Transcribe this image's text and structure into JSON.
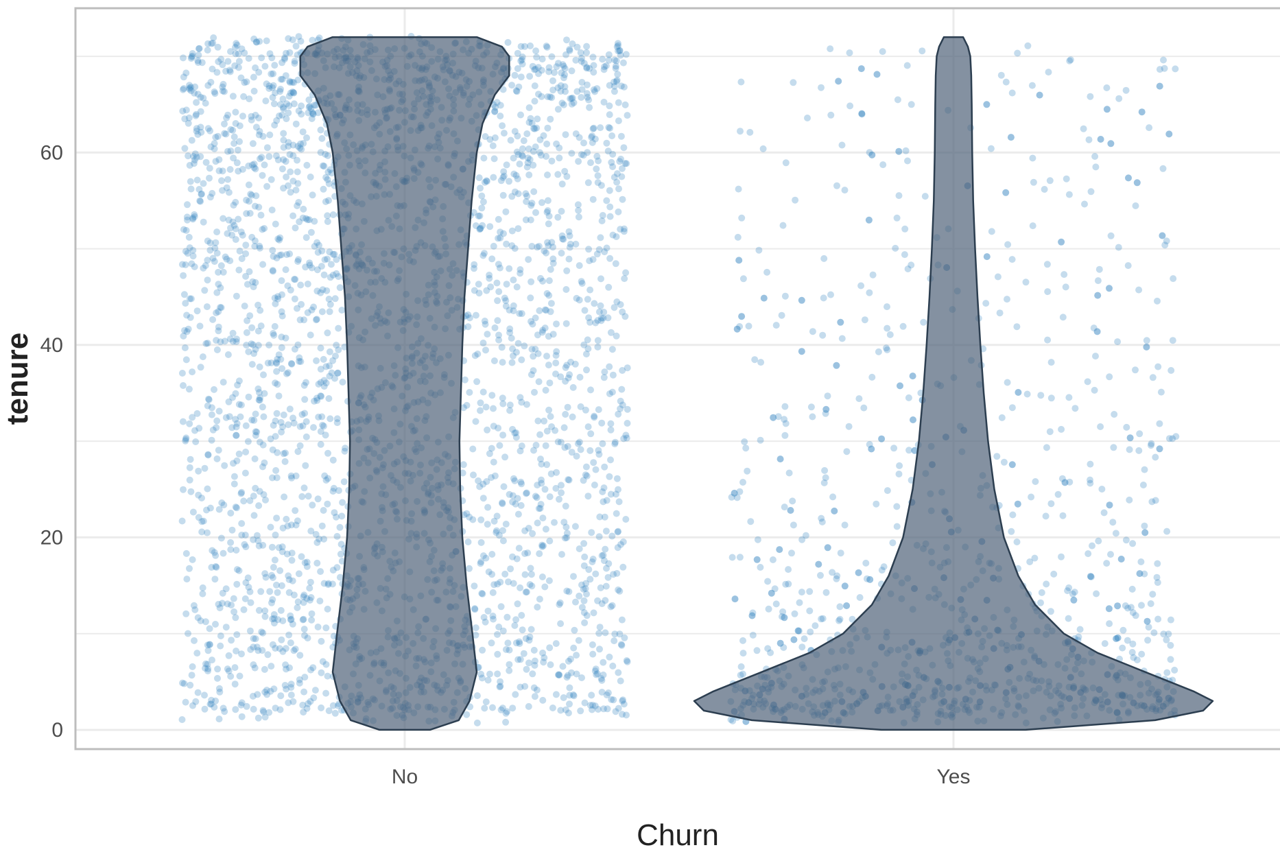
{
  "chart_data": {
    "type": "violin",
    "xlabel": "Churn",
    "ylabel": "tenure",
    "categories": [
      "No",
      "Yes"
    ],
    "ylim": [
      -2,
      75
    ],
    "yticks": [
      0,
      20,
      40,
      60
    ],
    "grid": true,
    "series": [
      {
        "category": "No",
        "tenure_range": [
          1,
          72
        ],
        "density_profile": [
          {
            "y": 0,
            "w": 0.35
          },
          {
            "y": 1,
            "w": 0.75
          },
          {
            "y": 3,
            "w": 0.9
          },
          {
            "y": 6,
            "w": 1.0
          },
          {
            "y": 10,
            "w": 0.94
          },
          {
            "y": 15,
            "w": 0.86
          },
          {
            "y": 20,
            "w": 0.8
          },
          {
            "y": 25,
            "w": 0.77
          },
          {
            "y": 30,
            "w": 0.76
          },
          {
            "y": 35,
            "w": 0.78
          },
          {
            "y": 40,
            "w": 0.8
          },
          {
            "y": 45,
            "w": 0.83
          },
          {
            "y": 50,
            "w": 0.88
          },
          {
            "y": 55,
            "w": 0.93
          },
          {
            "y": 60,
            "w": 1.0
          },
          {
            "y": 63,
            "w": 1.08
          },
          {
            "y": 66,
            "w": 1.25
          },
          {
            "y": 68,
            "w": 1.45
          },
          {
            "y": 70,
            "w": 1.45
          },
          {
            "y": 71,
            "w": 1.35
          },
          {
            "y": 72,
            "w": 1.0
          }
        ]
      },
      {
        "category": "Yes",
        "tenure_range": [
          1,
          72
        ],
        "density_profile": [
          {
            "y": 0,
            "w": 1.5
          },
          {
            "y": 1,
            "w": 4.2
          },
          {
            "y": 2,
            "w": 5.2
          },
          {
            "y": 3,
            "w": 5.4
          },
          {
            "y": 4,
            "w": 5.0
          },
          {
            "y": 6,
            "w": 4.0
          },
          {
            "y": 8,
            "w": 3.0
          },
          {
            "y": 10,
            "w": 2.3
          },
          {
            "y": 13,
            "w": 1.7
          },
          {
            "y": 16,
            "w": 1.35
          },
          {
            "y": 20,
            "w": 1.05
          },
          {
            "y": 25,
            "w": 0.85
          },
          {
            "y": 30,
            "w": 0.72
          },
          {
            "y": 35,
            "w": 0.63
          },
          {
            "y": 40,
            "w": 0.56
          },
          {
            "y": 45,
            "w": 0.5
          },
          {
            "y": 50,
            "w": 0.45
          },
          {
            "y": 55,
            "w": 0.41
          },
          {
            "y": 60,
            "w": 0.39
          },
          {
            "y": 65,
            "w": 0.38
          },
          {
            "y": 68,
            "w": 0.37
          },
          {
            "y": 70,
            "w": 0.35
          },
          {
            "y": 71,
            "w": 0.3
          },
          {
            "y": 72,
            "w": 0.2
          }
        ]
      }
    ],
    "colors": {
      "violin_fill": "#4a5d74",
      "violin_stroke": "#2c3e50",
      "points": "#2f80c0",
      "grid": "#ebebeb",
      "panel_border": "#bdbdbd"
    }
  }
}
